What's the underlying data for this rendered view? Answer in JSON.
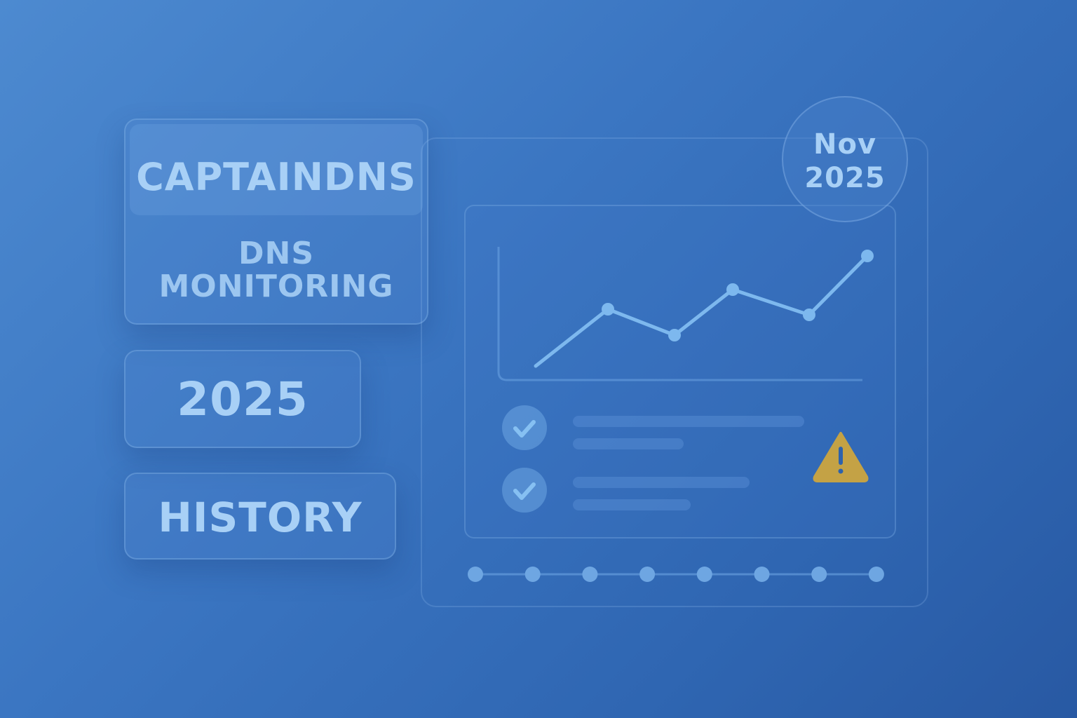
{
  "brand": {
    "name": "CAPTAINDNS",
    "subtitle_line1": "DNS",
    "subtitle_line2": "MONITORING"
  },
  "year_badge": "2025",
  "history_label": "HISTORY",
  "date_badge": {
    "month": "Nov",
    "year": "2025"
  },
  "icons": {
    "checks": [
      "check-icon",
      "check-icon"
    ],
    "alert": "warning-triangle-icon"
  },
  "colors": {
    "text": "#a8d0f6",
    "line": "#7db8ee",
    "warning": "#c9a444"
  }
}
